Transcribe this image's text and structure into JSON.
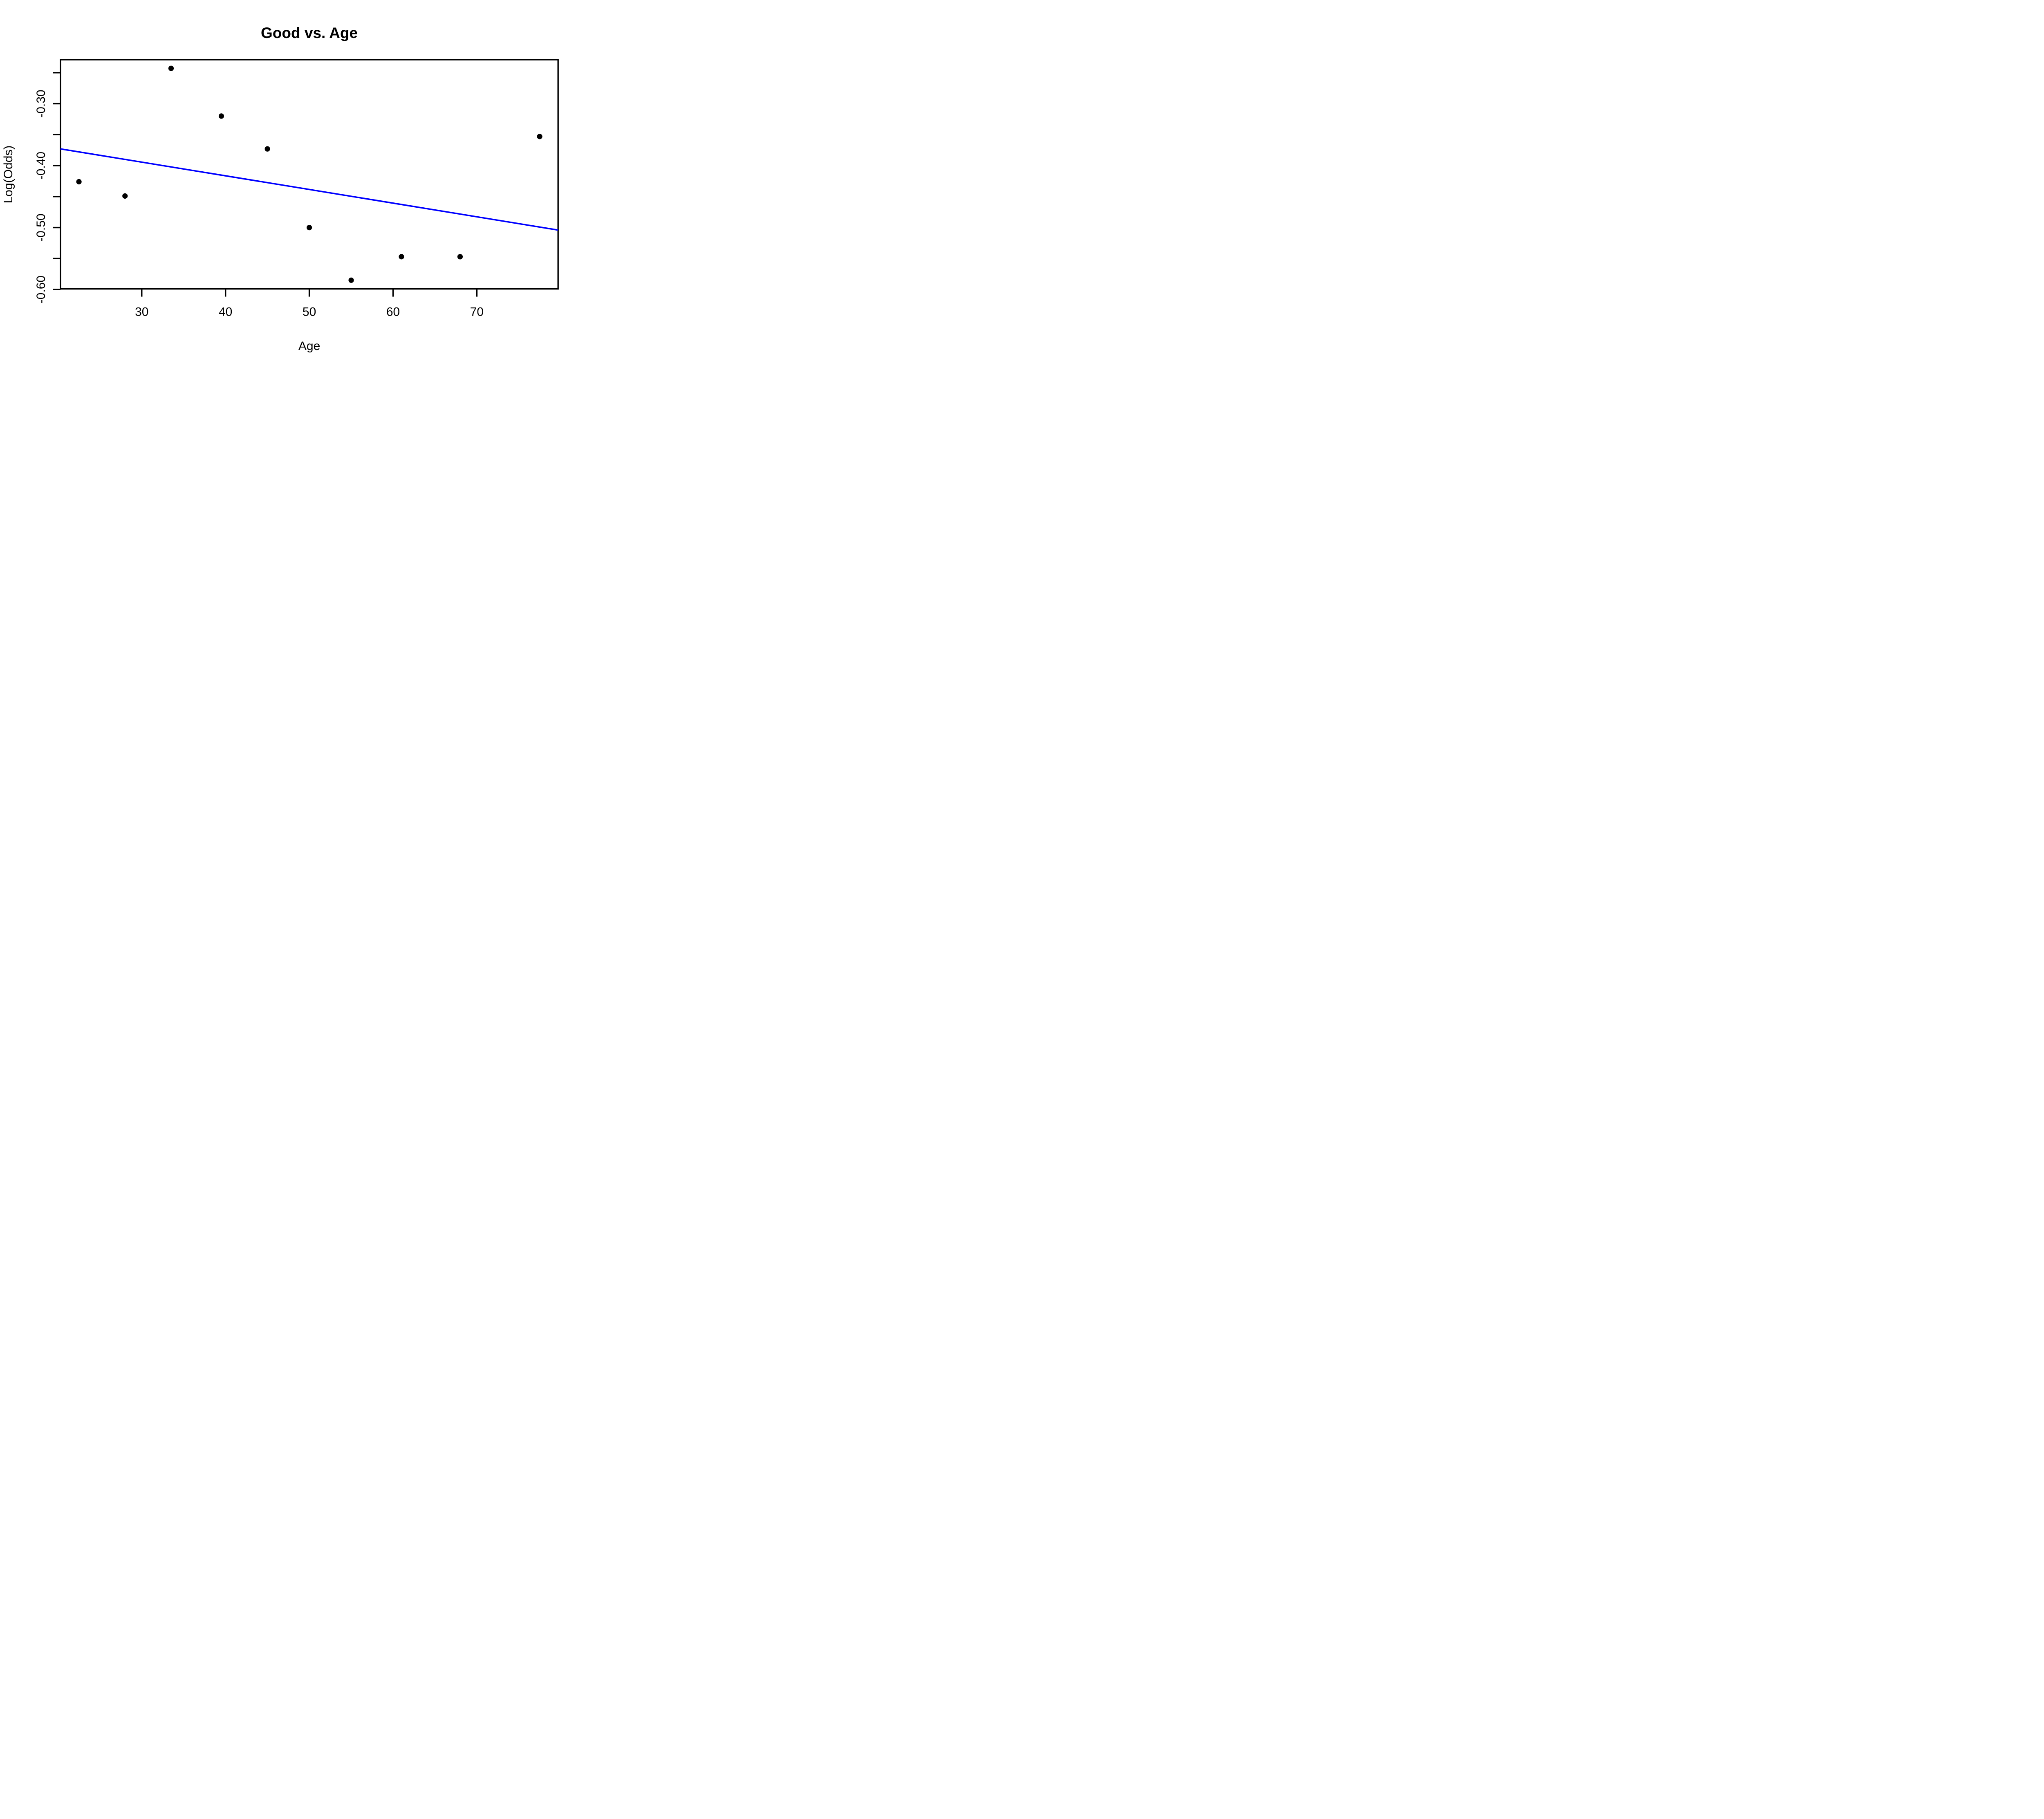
{
  "chart_data": {
    "type": "scatter",
    "title": "Good vs. Age",
    "xlabel": "Age",
    "ylabel": "Log(Odds)",
    "points": [
      {
        "x": 22.5,
        "y": -0.426
      },
      {
        "x": 28.0,
        "y": -0.449
      },
      {
        "x": 33.5,
        "y": -0.243
      },
      {
        "x": 39.5,
        "y": -0.32
      },
      {
        "x": 45.0,
        "y": -0.373
      },
      {
        "x": 50.0,
        "y": -0.5
      },
      {
        "x": 55.0,
        "y": -0.585
      },
      {
        "x": 61.0,
        "y": -0.547
      },
      {
        "x": 68.0,
        "y": -0.547
      },
      {
        "x": 77.5,
        "y": -0.353
      }
    ],
    "regression_line": {
      "x1": 20.3,
      "y1": -0.373,
      "x2": 79.7,
      "y2": -0.504
    },
    "xlim": [
      20.3,
      79.7
    ],
    "ylim": [
      -0.599,
      -0.229
    ],
    "x_ticks": [
      {
        "v": 30,
        "label": "30"
      },
      {
        "v": 40,
        "label": "40"
      },
      {
        "v": 50,
        "label": "50"
      },
      {
        "v": 60,
        "label": "60"
      },
      {
        "v": 70,
        "label": "70"
      }
    ],
    "y_ticks": [
      {
        "v": -0.6,
        "label": "-0.60"
      },
      {
        "v": -0.55,
        "label": ""
      },
      {
        "v": -0.5,
        "label": "-0.50"
      },
      {
        "v": -0.45,
        "label": ""
      },
      {
        "v": -0.4,
        "label": "-0.40"
      },
      {
        "v": -0.35,
        "label": ""
      },
      {
        "v": -0.3,
        "label": "-0.30"
      },
      {
        "v": -0.25,
        "label": ""
      }
    ],
    "legend": null,
    "grid": false,
    "colors": {
      "points": "#000000",
      "regression_line": "#0000FF",
      "axis": "#000000",
      "background": "#FFFFFF"
    }
  }
}
